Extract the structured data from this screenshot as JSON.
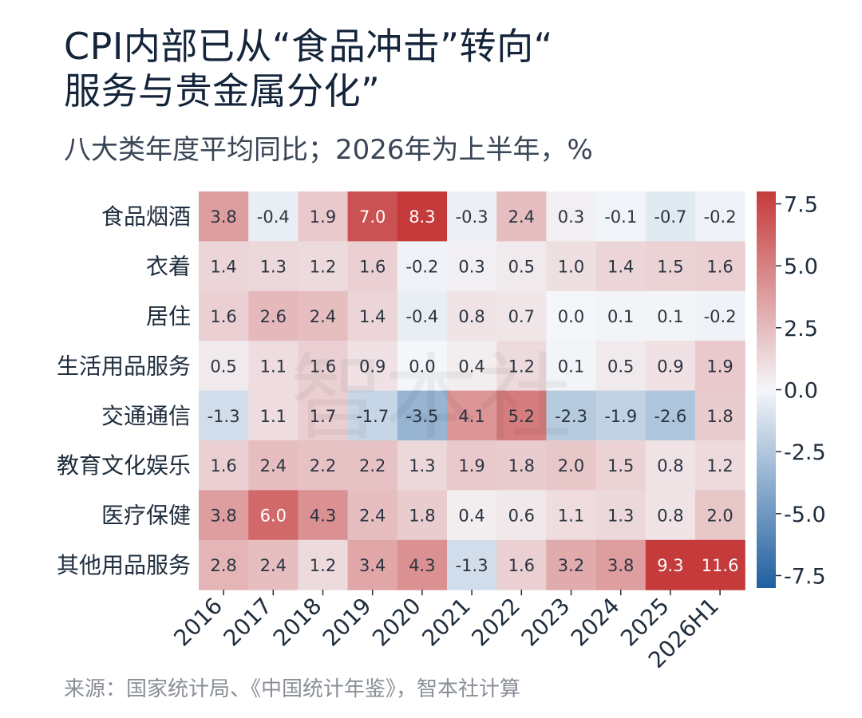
{
  "chart_data": {
    "type": "heatmap",
    "title": "CPI内部已从“食品冲击”转向“\n服务与贵金属分化”",
    "subtitle": "八大类年度平均同比；2026年为上半年，%",
    "source": "来源：国家统计局、《中国统计年鉴》，智本社计算",
    "watermark": "智本社",
    "rows": [
      "食品烟酒",
      "衣着",
      "居住",
      "生活用品服务",
      "交通通信",
      "教育文化娱乐",
      "医疗保健",
      "其他用品服务"
    ],
    "columns": [
      "2016",
      "2017",
      "2018",
      "2019",
      "2020",
      "2021",
      "2022",
      "2023",
      "2024",
      "2025",
      "2026H1"
    ],
    "values": [
      [
        3.8,
        -0.4,
        1.9,
        7.0,
        8.3,
        -0.3,
        2.4,
        0.3,
        -0.1,
        -0.7,
        -0.2
      ],
      [
        1.4,
        1.3,
        1.2,
        1.6,
        -0.2,
        0.3,
        0.5,
        1.0,
        1.4,
        1.5,
        1.6
      ],
      [
        1.6,
        2.6,
        2.4,
        1.4,
        -0.4,
        0.8,
        0.7,
        0.0,
        0.1,
        0.1,
        -0.2
      ],
      [
        0.5,
        1.1,
        1.6,
        0.9,
        0.0,
        0.4,
        1.2,
        0.1,
        0.5,
        0.9,
        1.9
      ],
      [
        -1.3,
        1.1,
        1.7,
        -1.7,
        -3.5,
        4.1,
        5.2,
        -2.3,
        -1.9,
        -2.6,
        1.8
      ],
      [
        1.6,
        2.4,
        2.2,
        2.2,
        1.3,
        1.9,
        1.8,
        2.0,
        1.5,
        0.8,
        1.2
      ],
      [
        3.8,
        6.0,
        4.3,
        2.4,
        1.8,
        0.4,
        0.6,
        1.1,
        1.3,
        0.8,
        2.0
      ],
      [
        2.8,
        2.4,
        1.2,
        3.4,
        4.3,
        -1.3,
        1.6,
        3.2,
        3.8,
        9.3,
        11.6
      ]
    ],
    "colorbar": {
      "range": [
        -8.0,
        8.0
      ],
      "ticks": [
        7.5,
        5.0,
        2.5,
        0.0,
        -2.5,
        -5.0,
        -7.5
      ],
      "tick_labels": [
        "7.5",
        "5.0",
        "2.5",
        "0.0",
        "-2.5",
        "-5.0",
        "-7.5"
      ]
    },
    "colors": {
      "max": "#c53a3a",
      "mid": "#f4f6f9",
      "min": "#1f5fa0"
    }
  }
}
